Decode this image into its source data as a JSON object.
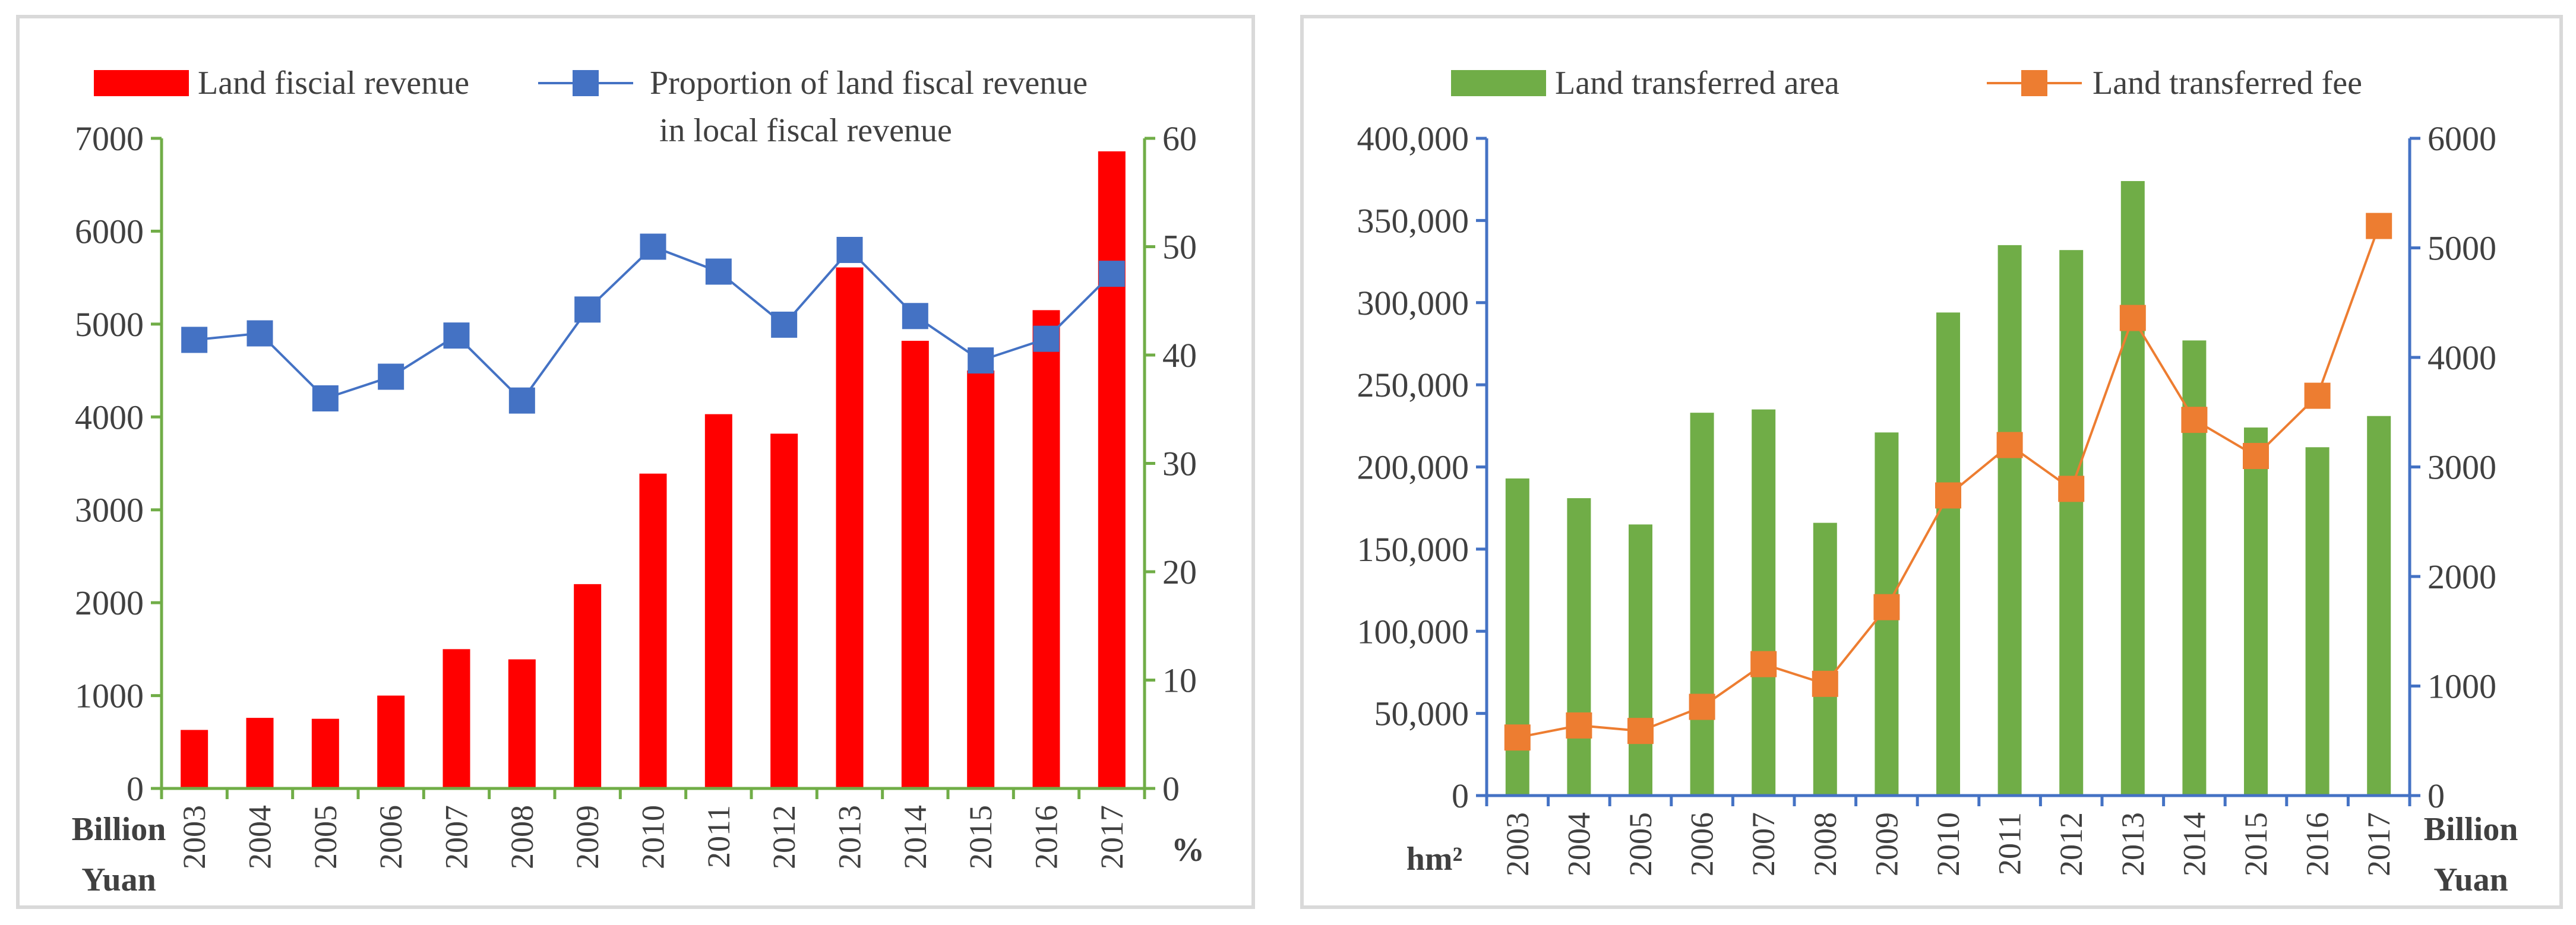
{
  "chart_data": [
    {
      "type": "bar+line",
      "title": "",
      "categories": [
        "2003",
        "2004",
        "2005",
        "2006",
        "2007",
        "2008",
        "2009",
        "2010",
        "2011",
        "2012",
        "2013",
        "2014",
        "2015",
        "2016",
        "2017"
      ],
      "series": [
        {
          "name": "Land fiscial revenue",
          "kind": "bar",
          "axis": "left",
          "color": "#ff0000",
          "values": [
            630,
            760,
            750,
            1000,
            1500,
            1390,
            2200,
            3390,
            4030,
            3820,
            5610,
            4820,
            4500,
            5150,
            6860
          ]
        },
        {
          "name": "Proportion of land fiscal revenue in local fiscal revenue",
          "kind": "line",
          "axis": "right",
          "color": "#4472c4",
          "values": [
            41.4,
            42.0,
            36.0,
            38.0,
            41.8,
            35.8,
            44.2,
            50.0,
            47.7,
            42.8,
            49.7,
            43.6,
            39.5,
            41.5,
            47.5
          ]
        }
      ],
      "legend": {
        "bar_label": "Land fiscial revenue",
        "line_label_1": "Proportion of land fiscal revenue",
        "line_label_2": "in local fiscal revenue"
      },
      "left_axis": {
        "min": 0,
        "max": 7000,
        "step": 1000,
        "ticks": [
          "0",
          "1000",
          "2000",
          "3000",
          "4000",
          "5000",
          "6000",
          "7000"
        ],
        "unit_1": "Billion",
        "unit_2": "Yuan",
        "color": "#70ad47"
      },
      "right_axis": {
        "min": 0,
        "max": 60,
        "step": 10,
        "ticks": [
          "0",
          "10",
          "20",
          "30",
          "40",
          "50",
          "60"
        ],
        "unit": "%",
        "color": "#70ad47"
      },
      "grid": false
    },
    {
      "type": "bar+line",
      "title": "",
      "categories": [
        "2003",
        "2004",
        "2005",
        "2006",
        "2007",
        "2008",
        "2009",
        "2010",
        "2011",
        "2012",
        "2013",
        "2014",
        "2015",
        "2016",
        "2017"
      ],
      "series": [
        {
          "name": "Land transferred area",
          "kind": "bar",
          "axis": "left",
          "color": "#70ad47",
          "values": [
            193000,
            181000,
            165000,
            233000,
            235000,
            166000,
            221000,
            294000,
            335000,
            332000,
            374000,
            277000,
            224000,
            212000,
            231000
          ]
        },
        {
          "name": "Land transferred fee",
          "kind": "line",
          "axis": "right",
          "color": "#ed7d31",
          "values": [
            530,
            640,
            590,
            810,
            1200,
            1020,
            1720,
            2740,
            3200,
            2800,
            4360,
            3430,
            3100,
            3650,
            5200
          ]
        }
      ],
      "legend": {
        "bar_label": "Land transferred area",
        "line_label": "Land transferred fee"
      },
      "left_axis": {
        "min": 0,
        "max": 400000,
        "step": 50000,
        "ticks": [
          "0",
          "50,000",
          "100,000",
          "150,000",
          "200,000",
          "250,000",
          "300,000",
          "350,000",
          "400,000"
        ],
        "unit": "hm²",
        "color": "#4472c4"
      },
      "right_axis": {
        "min": 0,
        "max": 6000,
        "step": 1000,
        "ticks": [
          "0",
          "1000",
          "2000",
          "3000",
          "4000",
          "5000",
          "6000"
        ],
        "unit_1": "Billion",
        "unit_2": "Yuan",
        "color": "#4472c4"
      },
      "grid": false
    }
  ]
}
